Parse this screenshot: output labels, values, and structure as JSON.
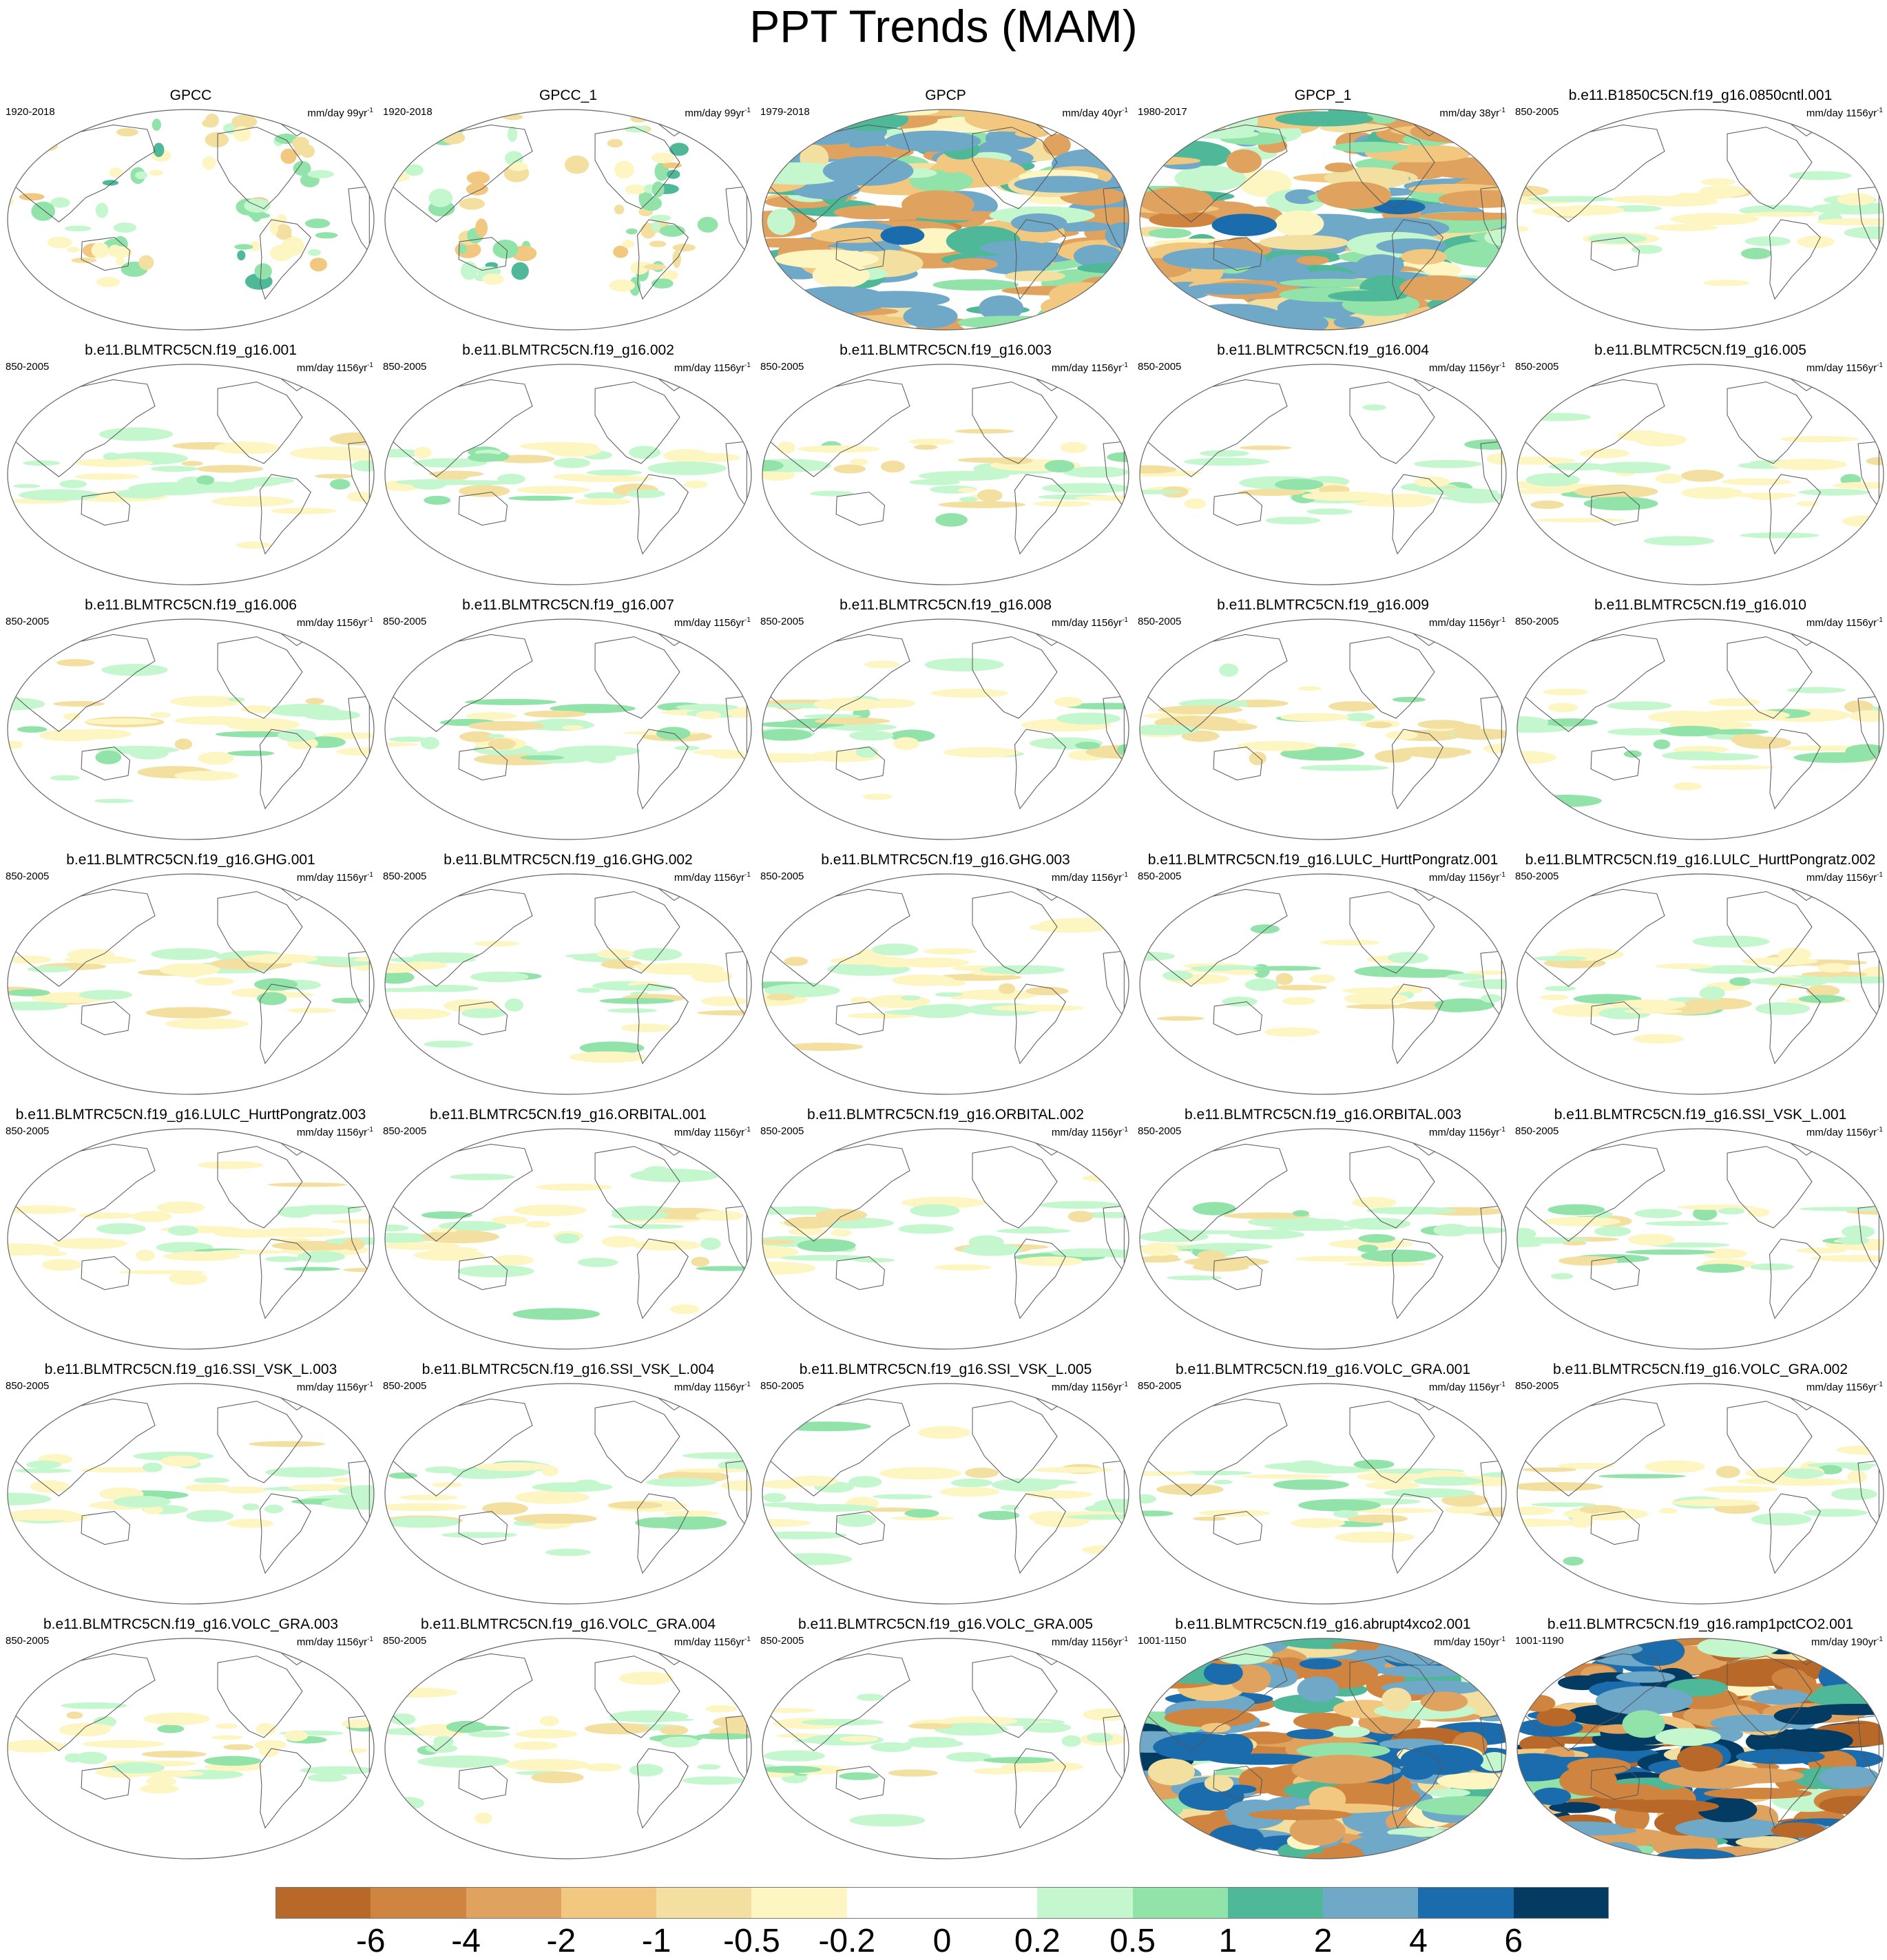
{
  "figure": {
    "title": "PPT Trends (MAM)"
  },
  "panels": [
    {
      "title": "GPCC",
      "period": "1920-2018",
      "units": "mm/day 99yr",
      "unit_exp": "-1",
      "intensity": 0.7,
      "style": "land"
    },
    {
      "title": "GPCC_1",
      "period": "1920-2018",
      "units": "mm/day 99yr",
      "unit_exp": "-1",
      "intensity": 0.7,
      "style": "land"
    },
    {
      "title": "GPCP",
      "period": "1979-2018",
      "units": "mm/day 40yr",
      "unit_exp": "-1",
      "intensity": 2.2,
      "style": "full"
    },
    {
      "title": "GPCP_1",
      "period": "1980-2017",
      "units": "mm/day 38yr",
      "unit_exp": "-1",
      "intensity": 2.2,
      "style": "full"
    },
    {
      "title": "b.e11.B1850C5CN.f19_g16.0850cntl.001",
      "period": "850-2005",
      "units": "mm/day 1156yr",
      "unit_exp": "-1",
      "intensity": 0.35,
      "style": "tropics"
    },
    {
      "title": "b.e11.BLMTRC5CN.f19_g16.001",
      "period": "850-2005",
      "units": "mm/day 1156yr",
      "unit_exp": "-1",
      "intensity": 0.45,
      "style": "tropics"
    },
    {
      "title": "b.e11.BLMTRC5CN.f19_g16.002",
      "period": "850-2005",
      "units": "mm/day 1156yr",
      "unit_exp": "-1",
      "intensity": 0.45,
      "style": "tropics"
    },
    {
      "title": "b.e11.BLMTRC5CN.f19_g16.003",
      "period": "850-2005",
      "units": "mm/day 1156yr",
      "unit_exp": "-1",
      "intensity": 0.45,
      "style": "tropics"
    },
    {
      "title": "b.e11.BLMTRC5CN.f19_g16.004",
      "period": "850-2005",
      "units": "mm/day 1156yr",
      "unit_exp": "-1",
      "intensity": 0.45,
      "style": "tropics"
    },
    {
      "title": "b.e11.BLMTRC5CN.f19_g16.005",
      "period": "850-2005",
      "units": "mm/day 1156yr",
      "unit_exp": "-1",
      "intensity": 0.45,
      "style": "tropics"
    },
    {
      "title": "b.e11.BLMTRC5CN.f19_g16.006",
      "period": "850-2005",
      "units": "mm/day 1156yr",
      "unit_exp": "-1",
      "intensity": 0.45,
      "style": "tropics"
    },
    {
      "title": "b.e11.BLMTRC5CN.f19_g16.007",
      "period": "850-2005",
      "units": "mm/day 1156yr",
      "unit_exp": "-1",
      "intensity": 0.45,
      "style": "tropics"
    },
    {
      "title": "b.e11.BLMTRC5CN.f19_g16.008",
      "period": "850-2005",
      "units": "mm/day 1156yr",
      "unit_exp": "-1",
      "intensity": 0.45,
      "style": "tropics"
    },
    {
      "title": "b.e11.BLMTRC5CN.f19_g16.009",
      "period": "850-2005",
      "units": "mm/day 1156yr",
      "unit_exp": "-1",
      "intensity": 0.45,
      "style": "tropics"
    },
    {
      "title": "b.e11.BLMTRC5CN.f19_g16.010",
      "period": "850-2005",
      "units": "mm/day 1156yr",
      "unit_exp": "-1",
      "intensity": 0.45,
      "style": "tropics"
    },
    {
      "title": "b.e11.BLMTRC5CN.f19_g16.GHG.001",
      "period": "850-2005",
      "units": "mm/day 1156yr",
      "unit_exp": "-1",
      "intensity": 0.45,
      "style": "tropics"
    },
    {
      "title": "b.e11.BLMTRC5CN.f19_g16.GHG.002",
      "period": "850-2005",
      "units": "mm/day 1156yr",
      "unit_exp": "-1",
      "intensity": 0.45,
      "style": "tropics"
    },
    {
      "title": "b.e11.BLMTRC5CN.f19_g16.GHG.003",
      "period": "850-2005",
      "units": "mm/day 1156yr",
      "unit_exp": "-1",
      "intensity": 0.45,
      "style": "tropics"
    },
    {
      "title": "b.e11.BLMTRC5CN.f19_g16.LULC_HurttPongratz.001",
      "period": "850-2005",
      "units": "mm/day 1156yr",
      "unit_exp": "-1",
      "intensity": 0.45,
      "style": "tropics"
    },
    {
      "title": "b.e11.BLMTRC5CN.f19_g16.LULC_HurttPongratz.002",
      "period": "850-2005",
      "units": "mm/day 1156yr",
      "unit_exp": "-1",
      "intensity": 0.5,
      "style": "tropics"
    },
    {
      "title": "b.e11.BLMTRC5CN.f19_g16.LULC_HurttPongratz.003",
      "period": "850-2005",
      "units": "mm/day 1156yr",
      "unit_exp": "-1",
      "intensity": 0.4,
      "style": "tropics"
    },
    {
      "title": "b.e11.BLMTRC5CN.f19_g16.ORBITAL.001",
      "period": "850-2005",
      "units": "mm/day 1156yr",
      "unit_exp": "-1",
      "intensity": 0.45,
      "style": "tropics"
    },
    {
      "title": "b.e11.BLMTRC5CN.f19_g16.ORBITAL.002",
      "period": "850-2005",
      "units": "mm/day 1156yr",
      "unit_exp": "-1",
      "intensity": 0.45,
      "style": "tropics"
    },
    {
      "title": "b.e11.BLMTRC5CN.f19_g16.ORBITAL.003",
      "period": "850-2005",
      "units": "mm/day 1156yr",
      "unit_exp": "-1",
      "intensity": 0.45,
      "style": "tropics"
    },
    {
      "title": "b.e11.BLMTRC5CN.f19_g16.SSI_VSK_L.001",
      "period": "850-2005",
      "units": "mm/day 1156yr",
      "unit_exp": "-1",
      "intensity": 0.45,
      "style": "tropics"
    },
    {
      "title": "b.e11.BLMTRC5CN.f19_g16.SSI_VSK_L.003",
      "period": "850-2005",
      "units": "mm/day 1156yr",
      "unit_exp": "-1",
      "intensity": 0.4,
      "style": "tropics"
    },
    {
      "title": "b.e11.BLMTRC5CN.f19_g16.SSI_VSK_L.004",
      "period": "850-2005",
      "units": "mm/day 1156yr",
      "unit_exp": "-1",
      "intensity": 0.45,
      "style": "tropics"
    },
    {
      "title": "b.e11.BLMTRC5CN.f19_g16.SSI_VSK_L.005",
      "period": "850-2005",
      "units": "mm/day 1156yr",
      "unit_exp": "-1",
      "intensity": 0.4,
      "style": "tropics"
    },
    {
      "title": "b.e11.BLMTRC5CN.f19_g16.VOLC_GRA.001",
      "period": "850-2005",
      "units": "mm/day 1156yr",
      "unit_exp": "-1",
      "intensity": 0.45,
      "style": "tropics"
    },
    {
      "title": "b.e11.BLMTRC5CN.f19_g16.VOLC_GRA.002",
      "period": "850-2005",
      "units": "mm/day 1156yr",
      "unit_exp": "-1",
      "intensity": 0.4,
      "style": "tropics"
    },
    {
      "title": "b.e11.BLMTRC5CN.f19_g16.VOLC_GRA.003",
      "period": "850-2005",
      "units": "mm/day 1156yr",
      "unit_exp": "-1",
      "intensity": 0.4,
      "style": "tropics"
    },
    {
      "title": "b.e11.BLMTRC5CN.f19_g16.VOLC_GRA.004",
      "period": "850-2005",
      "units": "mm/day 1156yr",
      "unit_exp": "-1",
      "intensity": 0.45,
      "style": "tropics"
    },
    {
      "title": "b.e11.BLMTRC5CN.f19_g16.VOLC_GRA.005",
      "period": "850-2005",
      "units": "mm/day 1156yr",
      "unit_exp": "-1",
      "intensity": 0.4,
      "style": "tropics"
    },
    {
      "title": "b.e11.BLMTRC5CN.f19_g16.abrupt4xco2.001",
      "period": "1001-1150",
      "units": "mm/day 150yr",
      "unit_exp": "-1",
      "intensity": 3.5,
      "style": "full"
    },
    {
      "title": "b.e11.BLMTRC5CN.f19_g16.ramp1pctCO2.001",
      "period": "1001-1190",
      "units": "mm/day 190yr",
      "unit_exp": "-1",
      "intensity": 5.0,
      "style": "full"
    }
  ],
  "colorbar": {
    "colors": [
      "#b8692a",
      "#cf843f",
      "#e0a35f",
      "#f2c77f",
      "#f3e0a1",
      "#fef6c2",
      "#ffffff",
      "#ffffff",
      "#c5f7cf",
      "#91e3a9",
      "#4fb898",
      "#70a8c8",
      "#1b6cad",
      "#043b62"
    ],
    "labels": [
      "-6",
      "-4",
      "-2",
      "-1",
      "-0.5",
      "-0.2",
      "0",
      "0.2",
      "0.5",
      "1",
      "2",
      "4",
      "6"
    ]
  },
  "chart_data": {
    "type": "heatmap",
    "title": "PPT Trends (MAM)",
    "subplots": 35,
    "layout": "7 rows x 5 columns",
    "projection": "Robinson, Pacific-centered",
    "contour_levels": [
      -6,
      -4,
      -2,
      -1,
      -0.5,
      -0.2,
      0,
      0.2,
      0.5,
      1,
      2,
      4,
      6
    ],
    "units": "mm/day per record length",
    "panel_units": [
      "mm/day 99yr-1",
      "mm/day 99yr-1",
      "mm/day 40yr-1",
      "mm/day 38yr-1",
      "mm/day 1156yr-1",
      "mm/day 150yr-1",
      "mm/day 190yr-1"
    ],
    "legend": "horizontal colorbar at bottom"
  }
}
